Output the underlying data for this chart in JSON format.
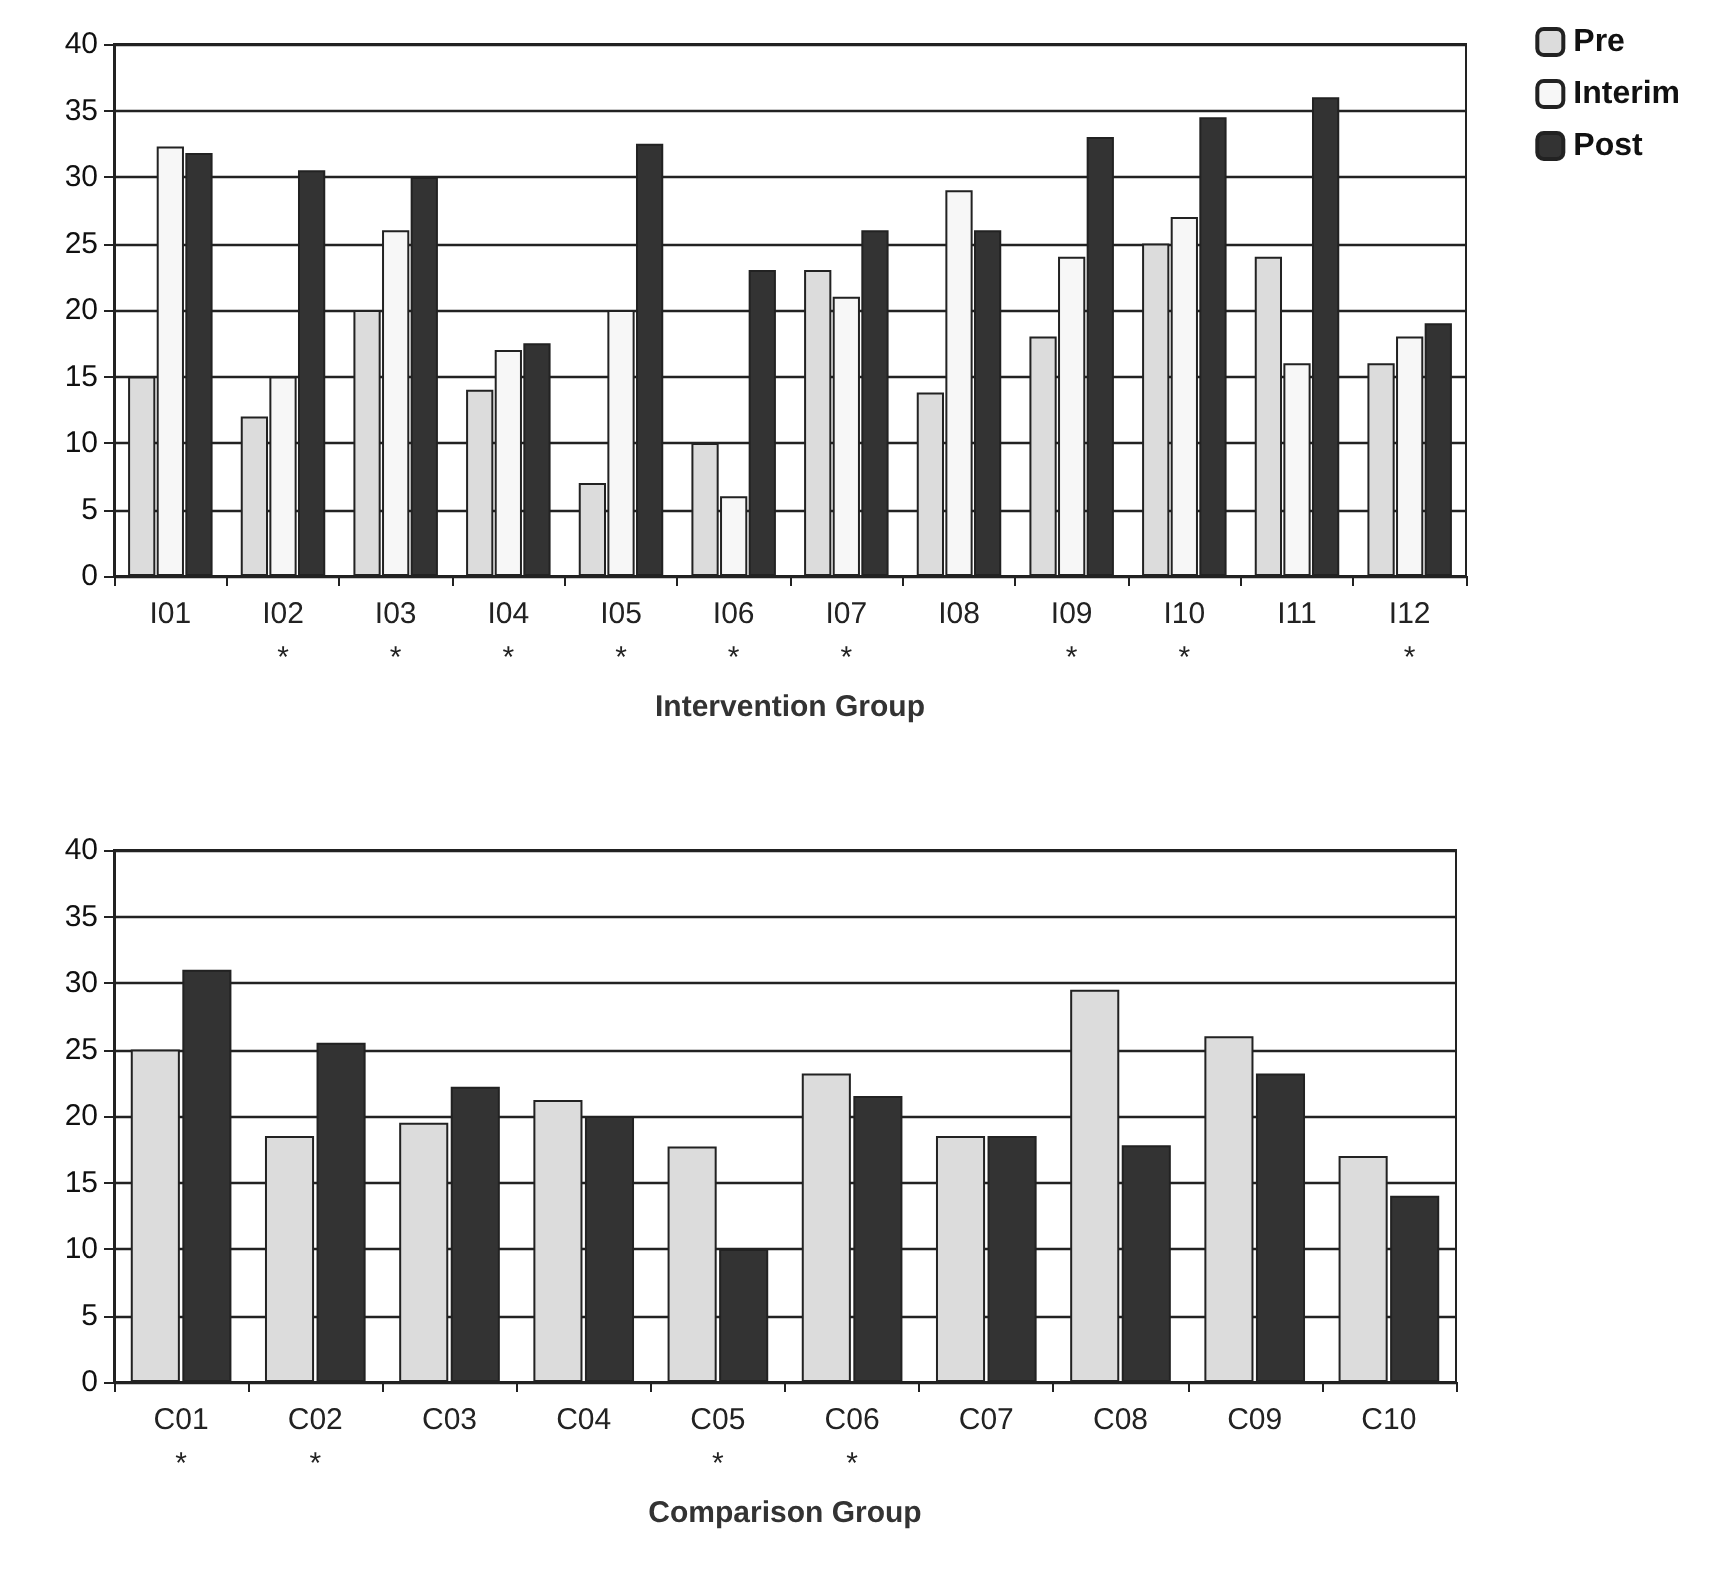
{
  "chart_data": [
    {
      "type": "bar",
      "xlabel": "Intervention Group",
      "categories": [
        "I01",
        "I02\n*",
        "I03\n*",
        "I04\n*",
        "I05\n*",
        "I06\n*",
        "I07\n*",
        "I08",
        "I09\n*",
        "I10\n*",
        "I11",
        "I12\n*"
      ],
      "series": [
        {
          "name": "Pre",
          "color": "#dcdcdc",
          "values": [
            15,
            12,
            20,
            14,
            7,
            10,
            23,
            13.8,
            18,
            25,
            24,
            16
          ]
        },
        {
          "name": "Interim",
          "color": "#f7f7f7",
          "values": [
            32.3,
            15,
            26,
            17,
            20,
            6,
            21,
            29,
            24,
            27,
            16,
            18
          ]
        },
        {
          "name": "Post",
          "color": "#333333",
          "values": [
            31.8,
            30.5,
            30,
            17.5,
            32.5,
            23,
            26,
            26,
            33,
            34.5,
            36,
            19
          ]
        }
      ],
      "ylim": [
        0,
        40
      ],
      "yticks": [
        0,
        5,
        10,
        15,
        20,
        25,
        30,
        35,
        40
      ],
      "grid": "y",
      "legend": "top right"
    },
    {
      "type": "bar",
      "xlabel": "Comparison Group",
      "categories": [
        "C01\n*",
        "C02\n*",
        "C03",
        "C04",
        "C05\n*",
        "C06\n*",
        "C07",
        "C08",
        "C09",
        "C10"
      ],
      "series": [
        {
          "color": "#dcdcdc",
          "values": [
            25,
            18.5,
            19.5,
            21.2,
            17.7,
            23.2,
            18.5,
            29.5,
            26,
            17
          ]
        },
        {
          "color": "#333333",
          "values": [
            31,
            25.5,
            22.2,
            20,
            10,
            21.5,
            18.5,
            17.8,
            23.2,
            14
          ]
        }
      ],
      "ylim": [
        0,
        40
      ],
      "yticks": [
        0,
        5,
        10,
        15,
        20,
        25,
        30,
        35,
        40
      ],
      "grid": "y"
    }
  ]
}
